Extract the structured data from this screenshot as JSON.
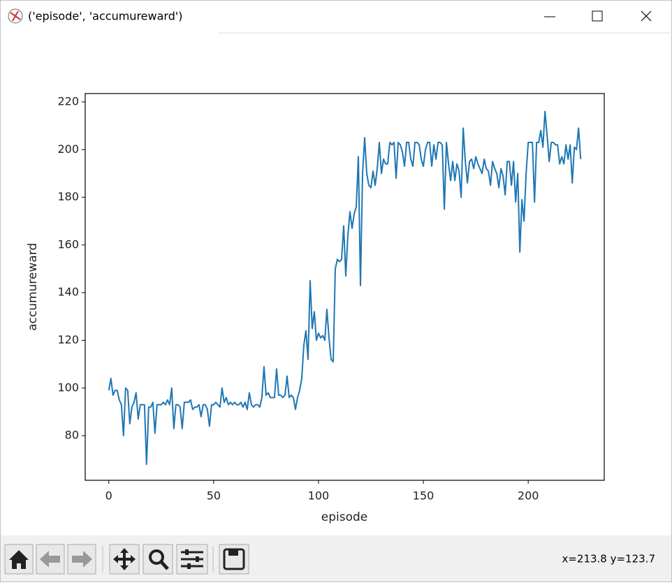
{
  "window": {
    "title": "('episode', 'accumureward')"
  },
  "chart_data": {
    "type": "line",
    "x_label": "episode",
    "y_label": "accumureward",
    "x": [
      0,
      1,
      2,
      3,
      4,
      5,
      6,
      7,
      8,
      9,
      10,
      11,
      12,
      13,
      14,
      15,
      16,
      17,
      18,
      19,
      20,
      21,
      22,
      23,
      24,
      25,
      26,
      27,
      28,
      29,
      30,
      31,
      32,
      33,
      34,
      35,
      36,
      37,
      38,
      39,
      40,
      41,
      42,
      43,
      44,
      45,
      46,
      47,
      48,
      49,
      50,
      51,
      52,
      53,
      54,
      55,
      56,
      57,
      58,
      59,
      60,
      61,
      62,
      63,
      64,
      65,
      66,
      67,
      68,
      69,
      70,
      71,
      72,
      73,
      74,
      75,
      76,
      77,
      78,
      79,
      80,
      81,
      82,
      83,
      84,
      85,
      86,
      87,
      88,
      89,
      90,
      91,
      92,
      93,
      94,
      95,
      96,
      97,
      98,
      99,
      100,
      101,
      102,
      103,
      104,
      105,
      106,
      107,
      108,
      109,
      110,
      111,
      112,
      113,
      114,
      115,
      116,
      117,
      118,
      119,
      120,
      121,
      122,
      123,
      124,
      125,
      126,
      127,
      128,
      129,
      130,
      131,
      132,
      133,
      134,
      135,
      136,
      137,
      138,
      139,
      140,
      141,
      142,
      143,
      144,
      145,
      146,
      147,
      148,
      149,
      150,
      151,
      152,
      153,
      154,
      155,
      156,
      157,
      158,
      159,
      160,
      161,
      162,
      163,
      164,
      165,
      166,
      167,
      168,
      169,
      170,
      171,
      172,
      173,
      174,
      175,
      176,
      177,
      178,
      179,
      180,
      181,
      182,
      183,
      184,
      185,
      186,
      187,
      188,
      189,
      190,
      191,
      192,
      193,
      194,
      195,
      196,
      197,
      198,
      199,
      200,
      201,
      202,
      203,
      204,
      205,
      206,
      207,
      208,
      209,
      210,
      211,
      212,
      213,
      214,
      215,
      216,
      217,
      218,
      219,
      220,
      221,
      222,
      223,
      224,
      225
    ],
    "series": [
      {
        "color": "#1f77b4",
        "values": [
          99,
          104,
          97,
          99,
          99,
          95,
          93,
          80,
          100,
          99,
          85,
          92,
          94,
          98,
          87,
          93,
          93,
          93,
          68,
          92,
          92,
          94,
          81,
          93,
          93,
          93,
          94,
          93,
          95,
          93,
          100,
          83,
          93,
          93,
          92,
          83,
          94,
          94,
          94,
          95,
          91,
          92,
          92,
          93,
          88,
          93,
          93,
          91,
          84,
          93,
          93,
          94,
          93,
          92,
          100,
          94,
          96,
          93,
          94,
          93,
          94,
          93,
          93,
          94,
          92,
          94,
          91,
          98,
          93,
          92,
          93,
          93,
          92,
          96,
          109,
          97,
          98,
          96,
          96,
          96,
          108,
          97,
          97,
          96,
          97,
          105,
          96,
          97,
          96,
          91,
          96,
          99,
          104,
          118,
          124,
          112,
          145,
          125,
          132,
          120,
          123,
          121,
          122,
          120,
          133,
          121,
          112,
          111,
          150,
          154,
          153,
          154,
          168,
          147,
          164,
          174,
          167,
          173,
          176,
          197,
          143,
          190,
          205,
          190,
          185,
          184,
          191,
          185,
          192,
          203,
          190,
          196,
          194,
          194,
          203,
          202,
          203,
          188,
          203,
          202,
          199,
          193,
          203,
          203,
          196,
          193,
          203,
          203,
          202,
          196,
          193,
          200,
          203,
          203,
          193,
          202,
          196,
          203,
          203,
          202,
          175,
          203,
          194,
          187,
          195,
          187,
          194,
          191,
          180,
          209,
          195,
          186,
          195,
          196,
          192,
          197,
          194,
          192,
          190,
          196,
          192,
          191,
          185,
          195,
          192,
          190,
          184,
          192,
          189,
          181,
          195,
          195,
          185,
          195,
          178,
          190,
          157,
          179,
          170,
          190,
          203,
          203,
          203,
          178,
          203,
          203,
          208,
          201,
          216,
          206,
          195,
          203,
          203,
          202,
          202,
          194,
          197,
          194,
          202,
          196,
          202,
          186,
          201,
          200,
          209,
          196
        ]
      }
    ],
    "xlim": [
      -11.25,
      236.25
    ],
    "ylim": [
      61.3,
      223.5
    ],
    "xticks": [
      0,
      50,
      100,
      150,
      200
    ],
    "yticks": [
      80,
      100,
      120,
      140,
      160,
      180,
      200,
      220
    ]
  },
  "status": {
    "coordinates": "x=213.8 y=123.7"
  }
}
